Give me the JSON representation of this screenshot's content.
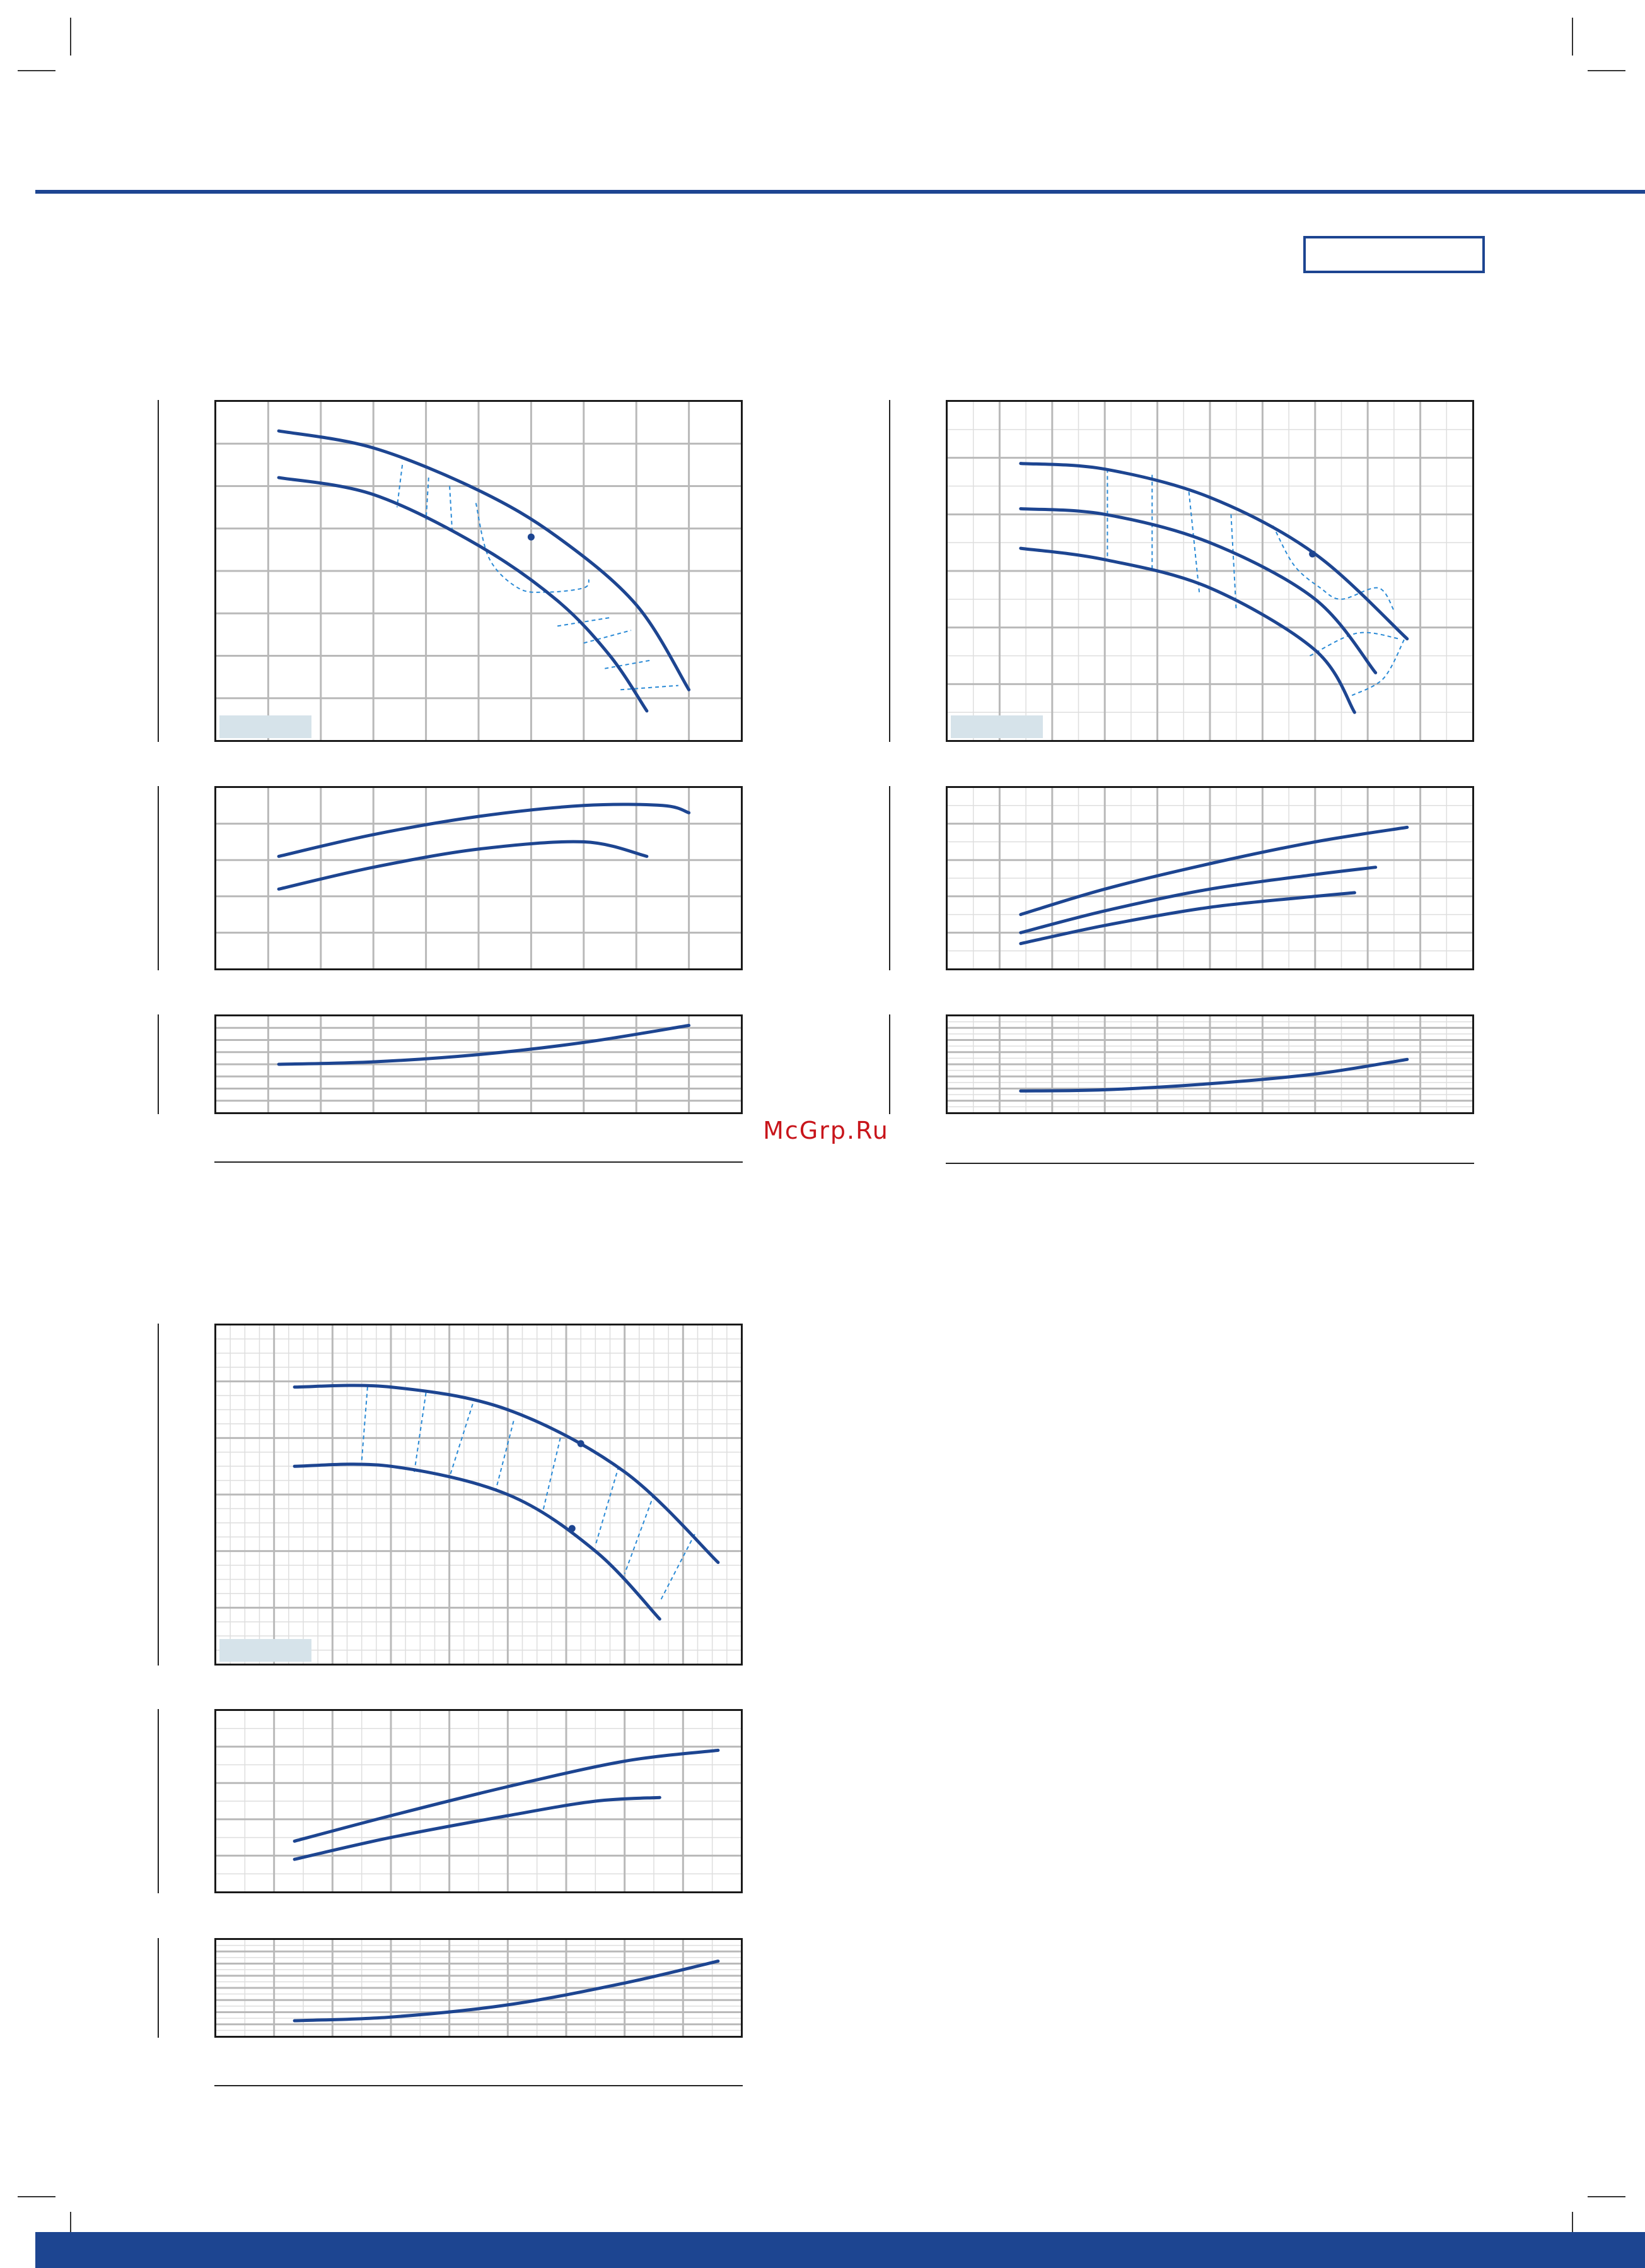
{
  "watermark": "McGrp.Ru",
  "colors": {
    "brand": "#1d4591",
    "curve": "#1d4591",
    "dash": "#2a8ad6",
    "grid_major": "#b9b9b9",
    "grid_minor": "#dedede",
    "label_box": "#d6e3ea",
    "watermark": "#c8151b"
  },
  "chart_data": [
    {
      "type": "line",
      "role": "head",
      "xlim": [
        0,
        10
      ],
      "ylim": [
        0,
        8
      ],
      "xgrid": 10,
      "ygrid": 8,
      "minor": 1,
      "series": [
        {
          "x": [
            1.2,
            3.0,
            5.0,
            6.5,
            8.0,
            9.0
          ],
          "y": [
            7.3,
            6.9,
            5.9,
            4.8,
            3.2,
            1.2
          ]
        },
        {
          "x": [
            1.2,
            3.0,
            5.0,
            6.5,
            7.5,
            8.2
          ],
          "y": [
            6.2,
            5.8,
            4.6,
            3.3,
            2.0,
            0.7
          ]
        }
      ],
      "markers": [
        {
          "x": 6.0,
          "y": 4.8
        }
      ],
      "dashed": [
        {
          "x": [
            3.55,
            3.45
          ],
          "y": [
            6.5,
            5.5
          ]
        },
        {
          "x": [
            4.05,
            4.0
          ],
          "y": [
            6.2,
            5.2
          ]
        },
        {
          "x": [
            4.45,
            4.5
          ],
          "y": [
            6.0,
            4.9
          ]
        },
        {
          "x": [
            4.95,
            5.2,
            5.75,
            6.3,
            7.0,
            7.1
          ],
          "y": [
            5.6,
            4.3,
            3.6,
            3.5,
            3.6,
            3.8
          ]
        },
        {
          "x": [
            6.5,
            7.5
          ],
          "y": [
            2.7,
            2.9
          ]
        },
        {
          "x": [
            7.0,
            7.9
          ],
          "y": [
            2.3,
            2.6
          ]
        },
        {
          "x": [
            7.4,
            8.3
          ],
          "y": [
            1.7,
            1.9
          ]
        },
        {
          "x": [
            7.7,
            8.8
          ],
          "y": [
            1.2,
            1.3
          ]
        }
      ]
    },
    {
      "type": "line",
      "role": "power",
      "xlim": [
        0,
        10
      ],
      "ylim": [
        0,
        5
      ],
      "xgrid": 10,
      "ygrid": 5,
      "minor": 1,
      "series": [
        {
          "x": [
            1.2,
            3.0,
            5.0,
            7.0,
            8.5,
            9.0
          ],
          "y": [
            3.1,
            3.7,
            4.2,
            4.5,
            4.5,
            4.3
          ]
        },
        {
          "x": [
            1.2,
            3.0,
            5.0,
            7.0,
            8.2
          ],
          "y": [
            2.2,
            2.8,
            3.3,
            3.5,
            3.1
          ]
        }
      ],
      "markers": [],
      "dashed": []
    },
    {
      "type": "line",
      "role": "npsh",
      "xlim": [
        0,
        10
      ],
      "ylim": [
        0,
        4
      ],
      "xgrid": 10,
      "ygrid": 8,
      "minor": 1,
      "series": [
        {
          "x": [
            1.2,
            3.0,
            5.0,
            7.0,
            9.0
          ],
          "y": [
            2.0,
            2.1,
            2.4,
            2.9,
            3.6
          ]
        }
      ],
      "markers": [],
      "dashed": []
    },
    {
      "type": "line",
      "role": "head",
      "xlim": [
        0,
        10
      ],
      "ylim": [
        0,
        6
      ],
      "xgrid": 10,
      "ygrid": 6,
      "minor": 2,
      "series": [
        {
          "x": [
            1.4,
            3.0,
            5.0,
            7.0,
            8.75
          ],
          "y": [
            4.9,
            4.8,
            4.3,
            3.3,
            1.8
          ]
        },
        {
          "x": [
            1.4,
            3.0,
            5.0,
            7.0,
            8.15
          ],
          "y": [
            4.1,
            4.0,
            3.5,
            2.5,
            1.2
          ]
        },
        {
          "x": [
            1.4,
            3.0,
            5.0,
            7.0,
            7.75
          ],
          "y": [
            3.4,
            3.2,
            2.7,
            1.6,
            0.5
          ]
        }
      ],
      "markers": [
        {
          "x": 6.95,
          "y": 3.3
        }
      ],
      "dashed": [
        {
          "x": [
            3.05,
            3.05
          ],
          "y": [
            4.8,
            3.2
          ]
        },
        {
          "x": [
            3.9,
            3.9
          ],
          "y": [
            4.7,
            3.0
          ]
        },
        {
          "x": [
            4.6,
            4.8
          ],
          "y": [
            4.4,
            2.6
          ]
        },
        {
          "x": [
            5.4,
            5.5
          ],
          "y": [
            4.0,
            2.3
          ]
        },
        {
          "x": [
            6.2,
            6.6,
            7.1,
            7.5,
            8.2,
            8.5
          ],
          "y": [
            3.8,
            3.1,
            2.7,
            2.5,
            2.7,
            2.3
          ]
        },
        {
          "x": [
            6.9,
            7.8,
            8.6
          ],
          "y": [
            1.5,
            1.9,
            1.8
          ]
        },
        {
          "x": [
            7.7,
            8.3,
            8.7
          ],
          "y": [
            0.8,
            1.1,
            1.8
          ]
        }
      ]
    },
    {
      "type": "line",
      "role": "power",
      "xlim": [
        0,
        10
      ],
      "ylim": [
        0,
        5
      ],
      "xgrid": 10,
      "ygrid": 5,
      "minor": 2,
      "series": [
        {
          "x": [
            1.4,
            3.0,
            5.0,
            7.0,
            8.75
          ],
          "y": [
            1.5,
            2.2,
            2.9,
            3.5,
            3.9
          ]
        },
        {
          "x": [
            1.4,
            3.0,
            5.0,
            7.0,
            8.15
          ],
          "y": [
            1.0,
            1.6,
            2.2,
            2.6,
            2.8
          ]
        },
        {
          "x": [
            1.4,
            3.0,
            5.0,
            7.0,
            7.75
          ],
          "y": [
            0.7,
            1.2,
            1.7,
            2.0,
            2.1
          ]
        }
      ],
      "markers": [],
      "dashed": []
    },
    {
      "type": "line",
      "role": "npsh",
      "xlim": [
        0,
        10
      ],
      "ylim": [
        0,
        4
      ],
      "xgrid": 10,
      "ygrid": 8,
      "minor": 2,
      "series": [
        {
          "x": [
            1.4,
            3.0,
            5.0,
            7.0,
            8.75
          ],
          "y": [
            0.9,
            0.95,
            1.2,
            1.6,
            2.2
          ]
        }
      ],
      "markers": [],
      "dashed": []
    },
    {
      "type": "line",
      "role": "head",
      "xlim": [
        0,
        9
      ],
      "ylim": [
        0,
        6
      ],
      "xgrid": 9,
      "ygrid": 6,
      "minor": 4,
      "series": [
        {
          "x": [
            1.35,
            3.0,
            5.0,
            7.0,
            8.6
          ],
          "y": [
            4.9,
            4.9,
            4.5,
            3.4,
            1.8
          ]
        },
        {
          "x": [
            1.35,
            3.0,
            5.0,
            6.5,
            7.6
          ],
          "y": [
            3.5,
            3.5,
            3.0,
            2.0,
            0.8
          ]
        }
      ],
      "markers": [
        {
          "x": 6.25,
          "y": 3.9
        },
        {
          "x": 6.1,
          "y": 2.4
        }
      ],
      "dashed": [
        {
          "x": [
            2.6,
            2.5
          ],
          "y": [
            4.9,
            3.6
          ]
        },
        {
          "x": [
            3.6,
            3.4
          ],
          "y": [
            4.8,
            3.4
          ]
        },
        {
          "x": [
            4.4,
            4.0
          ],
          "y": [
            4.6,
            3.3
          ]
        },
        {
          "x": [
            5.1,
            4.8
          ],
          "y": [
            4.3,
            3.1
          ]
        },
        {
          "x": [
            5.9,
            5.6
          ],
          "y": [
            4.0,
            2.7
          ]
        },
        {
          "x": [
            6.9,
            6.5
          ],
          "y": [
            3.5,
            2.1
          ]
        },
        {
          "x": [
            7.5,
            7.0
          ],
          "y": [
            3.0,
            1.6
          ]
        },
        {
          "x": [
            8.2,
            7.6
          ],
          "y": [
            2.3,
            1.1
          ]
        }
      ]
    },
    {
      "type": "line",
      "role": "power",
      "xlim": [
        0,
        9
      ],
      "ylim": [
        0,
        5
      ],
      "xgrid": 9,
      "ygrid": 5,
      "minor": 2,
      "series": [
        {
          "x": [
            1.35,
            3.0,
            5.0,
            7.0,
            8.6
          ],
          "y": [
            1.4,
            2.1,
            2.9,
            3.6,
            3.9
          ]
        },
        {
          "x": [
            1.35,
            3.0,
            5.0,
            6.5,
            7.6
          ],
          "y": [
            0.9,
            1.5,
            2.1,
            2.5,
            2.6
          ]
        }
      ],
      "markers": [],
      "dashed": []
    },
    {
      "type": "line",
      "role": "npsh",
      "xlim": [
        0,
        9
      ],
      "ylim": [
        0,
        4
      ],
      "xgrid": 9,
      "ygrid": 8,
      "minor": 2,
      "series": [
        {
          "x": [
            1.35,
            3.0,
            5.0,
            7.0,
            8.6
          ],
          "y": [
            0.65,
            0.8,
            1.3,
            2.2,
            3.1
          ]
        }
      ],
      "markers": [],
      "dashed": []
    }
  ]
}
